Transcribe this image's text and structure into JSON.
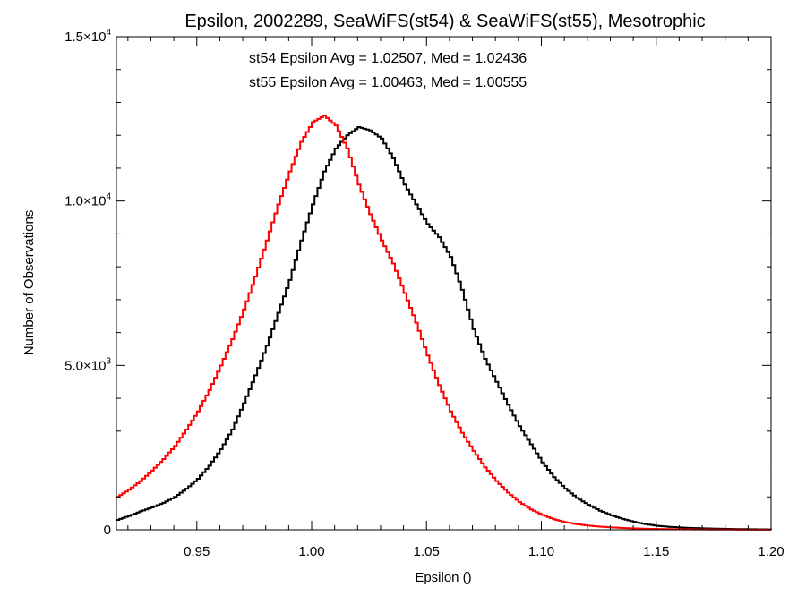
{
  "chart_data": {
    "type": "line",
    "style": "step-histogram",
    "title": "Epsilon, 2002289, SeaWiFS(st54) & SeaWiFS(st55), Mesotrophic",
    "xlabel": "Epsilon ()",
    "ylabel": "Number of Observations",
    "xlim": [
      0.915,
      1.2
    ],
    "ylim": [
      0,
      15000
    ],
    "x_ticks": [
      {
        "value": 0.95,
        "label": "0.95"
      },
      {
        "value": 1.0,
        "label": "1.00"
      },
      {
        "value": 1.05,
        "label": "1.05"
      },
      {
        "value": 1.1,
        "label": "1.10"
      },
      {
        "value": 1.15,
        "label": "1.15"
      },
      {
        "value": 1.2,
        "label": "1.20"
      }
    ],
    "y_ticks": [
      {
        "value": 0,
        "mantissa": "0",
        "exponent": ""
      },
      {
        "value": 5000,
        "mantissa": "5.0×10",
        "exponent": "3"
      },
      {
        "value": 10000,
        "mantissa": "1.0×10",
        "exponent": "4"
      },
      {
        "value": 15000,
        "mantissa": "1.5×10",
        "exponent": "4"
      }
    ],
    "annotations": [
      {
        "text": "st54 Epsilon Avg = 1.02507, Med = 1.02436",
        "color": "#000000"
      },
      {
        "text": "st55 Epsilon Avg = 1.00463, Med = 1.00555",
        "color": "#ff0000"
      }
    ],
    "series": [
      {
        "color": "#000000",
        "x": [
          0.915,
          0.92,
          0.925,
          0.93,
          0.935,
          0.94,
          0.945,
          0.95,
          0.955,
          0.96,
          0.965,
          0.97,
          0.975,
          0.98,
          0.985,
          0.99,
          0.995,
          1.0,
          1.005,
          1.01,
          1.015,
          1.02,
          1.025,
          1.03,
          1.035,
          1.04,
          1.045,
          1.05,
          1.055,
          1.06,
          1.065,
          1.07,
          1.075,
          1.08,
          1.085,
          1.09,
          1.095,
          1.1,
          1.105,
          1.11,
          1.115,
          1.12,
          1.125,
          1.13,
          1.135,
          1.14,
          1.145,
          1.15,
          1.155,
          1.16,
          1.165,
          1.17,
          1.175,
          1.18,
          1.185,
          1.19,
          1.195,
          1.2
        ],
        "values": [
          300,
          420,
          560,
          680,
          820,
          1000,
          1250,
          1550,
          1950,
          2450,
          3050,
          3850,
          4700,
          5600,
          6600,
          7600,
          8800,
          9900,
          10900,
          11600,
          12000,
          12250,
          12150,
          11900,
          11300,
          10500,
          9900,
          9300,
          8900,
          8300,
          7300,
          6100,
          5200,
          4500,
          3800,
          3150,
          2600,
          2050,
          1600,
          1250,
          970,
          760,
          580,
          440,
          330,
          240,
          170,
          120,
          90,
          70,
          55,
          45,
          35,
          28,
          22,
          18,
          14,
          10
        ]
      },
      {
        "color": "#ff0000",
        "x": [
          0.915,
          0.92,
          0.925,
          0.93,
          0.935,
          0.94,
          0.945,
          0.95,
          0.955,
          0.96,
          0.965,
          0.97,
          0.975,
          0.98,
          0.985,
          0.99,
          0.995,
          1.0,
          1.005,
          1.01,
          1.015,
          1.02,
          1.025,
          1.03,
          1.035,
          1.04,
          1.045,
          1.05,
          1.055,
          1.06,
          1.065,
          1.07,
          1.075,
          1.08,
          1.085,
          1.09,
          1.095,
          1.1,
          1.105,
          1.11,
          1.115,
          1.12,
          1.125,
          1.13,
          1.135,
          1.14,
          1.145,
          1.15,
          1.155,
          1.16,
          1.165,
          1.17,
          1.175,
          1.18,
          1.185,
          1.19,
          1.195,
          1.2
        ],
        "values": [
          1000,
          1220,
          1480,
          1800,
          2150,
          2550,
          3050,
          3600,
          4250,
          5000,
          5800,
          6700,
          7700,
          8800,
          9900,
          10900,
          11800,
          12400,
          12600,
          12300,
          11600,
          10500,
          9600,
          8800,
          8100,
          7200,
          6300,
          5300,
          4400,
          3600,
          2950,
          2400,
          1900,
          1480,
          1130,
          840,
          620,
          450,
          320,
          230,
          170,
          125,
          95,
          72,
          55,
          42,
          32,
          25,
          20,
          15,
          12,
          10,
          8,
          6,
          5,
          4,
          3,
          2
        ]
      }
    ],
    "grid": false,
    "legend": "none"
  }
}
